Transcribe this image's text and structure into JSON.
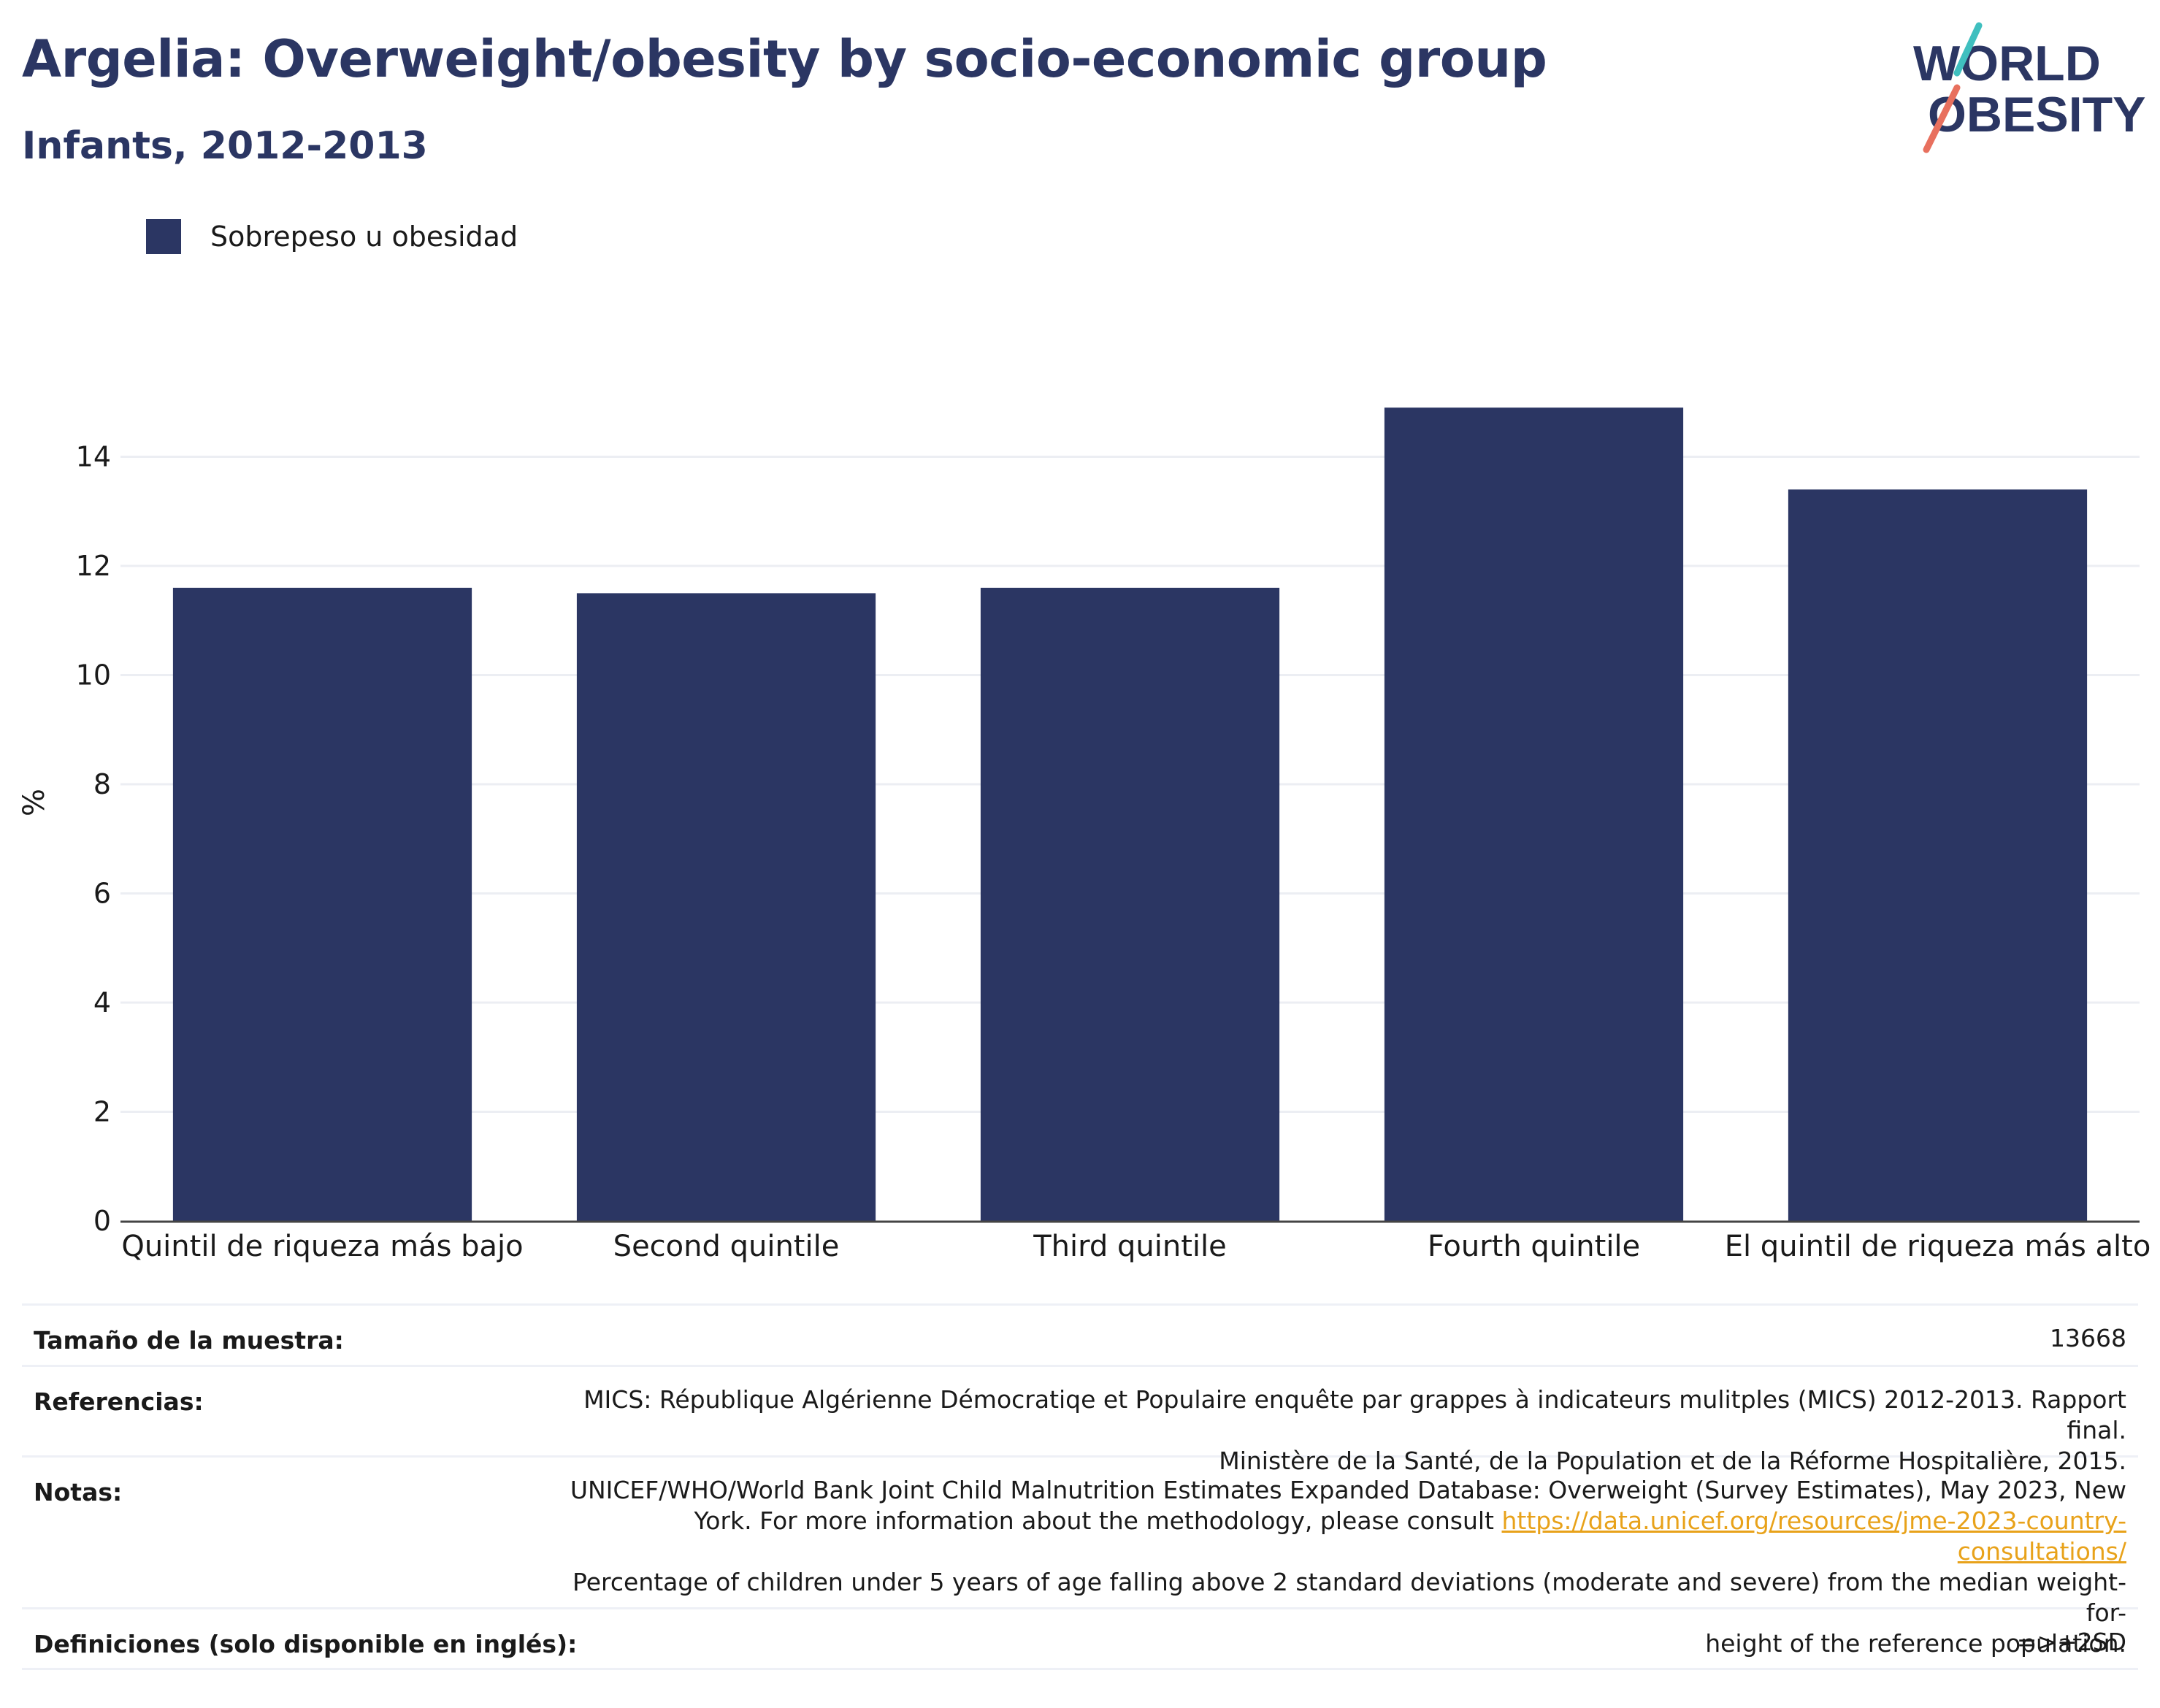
{
  "header": {
    "title": "Argelia: Overweight/obesity by socio-economic group",
    "subtitle": "Infants, 2012-2013"
  },
  "logo": {
    "line1": "WORLD",
    "line2": "OBESITY",
    "colors": {
      "text": "#2b3663",
      "slash_top": "#3fbfbf",
      "slash_bottom": "#e8705e"
    }
  },
  "legend": {
    "label": "Sobrepeso u obesidad",
    "color": "#2b3663"
  },
  "chart_data": {
    "type": "bar",
    "categories": [
      "Quintil de riqueza más bajo",
      "Second quintile",
      "Third quintile",
      "Fourth quintile",
      "El quintil de riqueza más alto"
    ],
    "series": [
      {
        "name": "Sobrepeso u obesidad",
        "values": [
          11.6,
          11.5,
          11.6,
          14.9,
          13.4
        ],
        "color": "#2b3663"
      }
    ],
    "ylabel": "%",
    "xlabel": "",
    "ylim": [
      0,
      16
    ],
    "yticks": [
      0,
      2,
      4,
      6,
      8,
      10,
      12,
      14
    ],
    "grid": true,
    "legend_position": "top-left"
  },
  "info": {
    "sample_label": "Tamaño de la muestra:",
    "sample_value": "13668",
    "refs_label": "Referencias:",
    "refs_line1": "MICS: République Algérienne Démocratiqe et Populaire enquête par grappes à indicateurs mulitples (MICS) 2012-2013. Rapport final.",
    "refs_line2": "Ministère de la Santé, de la Population et de la Réforme Hospitalière, 2015.",
    "notes_label": "Notas:",
    "notes_line1": "UNICEF/WHO/World Bank Joint Child Malnutrition Estimates Expanded Database: Overweight (Survey Estimates), May 2023, New",
    "notes_line2": "York. For more information about the methodology, please consult",
    "notes_link": "https://data.unicef.org/resources/jme-2023-country-consultations/",
    "notes_line3": "Percentage of children under 5 years of age falling above 2 standard deviations (moderate and severe) from the median weight-for-",
    "notes_line4": "height of the reference population.",
    "defs_label": "Definiciones (solo disponible en inglés):",
    "defs_value": "=>+2SD"
  }
}
